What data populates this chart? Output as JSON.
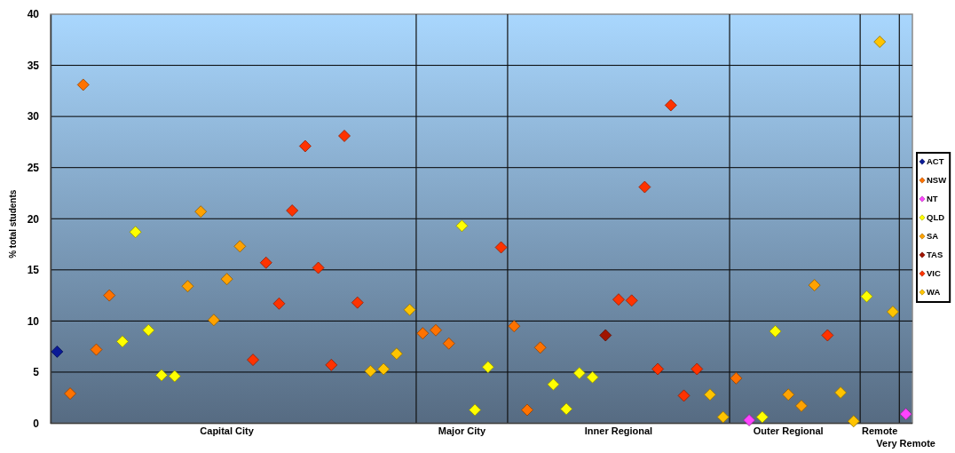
{
  "chart_data": {
    "type": "scatter",
    "ylabel": "% total students",
    "categories": [
      null,
      null,
      null,
      null,
      null,
      null,
      null,
      null,
      null,
      null,
      null,
      null,
      null,
      "Capital City",
      null,
      null,
      null,
      null,
      null,
      null,
      null,
      null,
      null,
      null,
      null,
      null,
      null,
      null,
      null,
      null,
      null,
      "Major City",
      null,
      null,
      null,
      null,
      null,
      null,
      null,
      null,
      null,
      null,
      null,
      "Inner Regional",
      null,
      null,
      null,
      null,
      null,
      null,
      null,
      null,
      null,
      null,
      null,
      null,
      "Outer Regional",
      null,
      null,
      null,
      null,
      null,
      null,
      "Remote",
      null,
      "Very Remote"
    ],
    "series": [
      {
        "name": "ACT",
        "color": "#0a1a96",
        "values": [
          7.0,
          null,
          null,
          null,
          null,
          null,
          null,
          null,
          null,
          null,
          null,
          null,
          null,
          null,
          null,
          null,
          null,
          null,
          null,
          null,
          null,
          null,
          null,
          null,
          null,
          null,
          null,
          null,
          null,
          null,
          null,
          null,
          null,
          null,
          null,
          null,
          null,
          null,
          null,
          null,
          null,
          null,
          null,
          null,
          null,
          null,
          null,
          null,
          null,
          null,
          null,
          null,
          null,
          null,
          null,
          null,
          null,
          null,
          null,
          null,
          null,
          null,
          null,
          null,
          null,
          null
        ]
      },
      {
        "name": "NSW",
        "color": "#ff7200",
        "values": [
          null,
          2.9,
          33.1,
          7.2,
          12.5,
          null,
          null,
          null,
          null,
          null,
          null,
          null,
          null,
          null,
          null,
          null,
          null,
          null,
          null,
          null,
          null,
          null,
          null,
          null,
          null,
          null,
          null,
          null,
          8.8,
          9.1,
          7.8,
          null,
          null,
          null,
          null,
          9.5,
          1.3,
          7.4,
          null,
          null,
          null,
          null,
          null,
          null,
          null,
          null,
          null,
          null,
          null,
          null,
          null,
          null,
          4.4,
          null,
          null,
          null,
          null,
          null,
          null,
          null,
          null,
          null,
          null,
          null,
          null,
          null
        ]
      },
      {
        "name": "NT",
        "color": "#ff44ff",
        "values": [
          null,
          null,
          null,
          null,
          null,
          null,
          null,
          null,
          null,
          null,
          null,
          null,
          null,
          null,
          null,
          null,
          null,
          null,
          null,
          null,
          null,
          null,
          null,
          null,
          null,
          null,
          null,
          null,
          null,
          null,
          null,
          null,
          null,
          null,
          null,
          null,
          null,
          null,
          null,
          null,
          null,
          null,
          null,
          null,
          null,
          null,
          null,
          null,
          null,
          null,
          null,
          null,
          null,
          0.3,
          null,
          null,
          null,
          null,
          null,
          null,
          null,
          null,
          null,
          null,
          null,
          0.9
        ]
      },
      {
        "name": "QLD",
        "color": "#ffff00",
        "values": [
          null,
          null,
          null,
          null,
          null,
          8.0,
          18.7,
          9.1,
          4.7,
          4.6,
          null,
          null,
          null,
          null,
          null,
          null,
          null,
          null,
          null,
          null,
          null,
          null,
          null,
          null,
          null,
          null,
          null,
          null,
          null,
          null,
          null,
          19.3,
          1.3,
          5.5,
          null,
          null,
          null,
          null,
          3.8,
          1.4,
          4.9,
          4.5,
          null,
          null,
          null,
          null,
          null,
          null,
          null,
          null,
          null,
          null,
          null,
          null,
          0.6,
          9.0,
          null,
          null,
          null,
          null,
          null,
          null,
          12.4,
          null,
          null,
          null
        ]
      },
      {
        "name": "SA",
        "color": "#ffa200",
        "values": [
          null,
          null,
          null,
          null,
          null,
          null,
          null,
          null,
          null,
          null,
          13.4,
          20.7,
          10.1,
          14.1,
          17.3,
          null,
          null,
          null,
          null,
          null,
          null,
          null,
          null,
          null,
          null,
          null,
          null,
          null,
          null,
          null,
          null,
          null,
          null,
          null,
          null,
          null,
          null,
          null,
          null,
          null,
          null,
          null,
          null,
          null,
          null,
          null,
          null,
          null,
          null,
          null,
          null,
          null,
          null,
          null,
          null,
          null,
          2.8,
          1.7,
          13.5,
          null,
          null,
          null,
          null,
          null,
          null,
          null
        ]
      },
      {
        "name": "TAS",
        "color": "#a01400",
        "values": [
          null,
          null,
          null,
          null,
          null,
          null,
          null,
          null,
          null,
          null,
          null,
          null,
          null,
          null,
          null,
          null,
          null,
          null,
          null,
          null,
          null,
          null,
          null,
          null,
          null,
          null,
          null,
          null,
          null,
          null,
          null,
          null,
          null,
          null,
          null,
          null,
          null,
          null,
          null,
          null,
          null,
          null,
          8.6,
          null,
          null,
          null,
          null,
          null,
          null,
          null,
          null,
          null,
          null,
          null,
          null,
          null,
          null,
          null,
          null,
          null,
          null,
          null,
          null,
          null,
          null,
          null
        ]
      },
      {
        "name": "VIC",
        "color": "#ff3300",
        "values": [
          null,
          null,
          null,
          null,
          null,
          null,
          null,
          null,
          null,
          null,
          null,
          null,
          null,
          null,
          null,
          6.2,
          15.7,
          11.7,
          20.8,
          27.1,
          15.2,
          5.7,
          28.1,
          11.8,
          null,
          null,
          null,
          null,
          null,
          null,
          null,
          null,
          null,
          null,
          17.2,
          null,
          null,
          null,
          null,
          null,
          null,
          null,
          null,
          12.1,
          12.0,
          23.1,
          5.3,
          31.1,
          2.7,
          5.3,
          null,
          null,
          null,
          null,
          null,
          null,
          null,
          null,
          null,
          8.6,
          null,
          null,
          null,
          null,
          null,
          null
        ]
      },
      {
        "name": "WA",
        "color": "#ffc400",
        "values": [
          null,
          null,
          null,
          null,
          null,
          null,
          null,
          null,
          null,
          null,
          null,
          null,
          null,
          null,
          null,
          null,
          null,
          null,
          null,
          null,
          null,
          null,
          null,
          null,
          5.1,
          5.3,
          6.8,
          11.1,
          null,
          null,
          null,
          null,
          null,
          null,
          null,
          null,
          null,
          null,
          null,
          null,
          null,
          null,
          null,
          null,
          null,
          null,
          null,
          null,
          null,
          null,
          2.8,
          0.6,
          null,
          null,
          null,
          null,
          null,
          null,
          null,
          null,
          3.0,
          0.2,
          null,
          37.3,
          10.9,
          null
        ]
      }
    ],
    "ylim": [
      0,
      40
    ],
    "yticks": [
      0,
      5,
      10,
      15,
      20,
      25,
      30,
      35,
      40
    ],
    "grid": "y",
    "legend": "right",
    "marker": "diamond"
  }
}
